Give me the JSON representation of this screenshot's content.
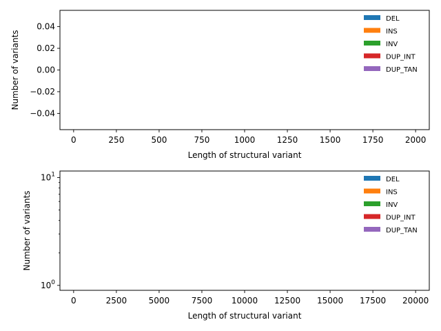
{
  "chart_data": [
    {
      "type": "bar",
      "xlabel": "Length of structural variant",
      "ylabel": "Number of variants",
      "xlim": [
        -80,
        2080
      ],
      "ylim": [
        -0.055,
        0.055
      ],
      "yscale": "linear",
      "xticks": [
        0,
        250,
        500,
        750,
        1000,
        1250,
        1500,
        1750,
        2000
      ],
      "xtick_labels": [
        "0",
        "250",
        "500",
        "750",
        "1000",
        "1250",
        "1500",
        "1750",
        "2000"
      ],
      "yticks": [
        0.04,
        0.02,
        0.0,
        -0.02,
        -0.04
      ],
      "ytick_labels": [
        "0.04",
        "0.02",
        "0.00",
        "−0.02",
        "−0.04"
      ],
      "legend_position": "upper right",
      "series": [
        {
          "name": "DEL",
          "color": "#1f77b4",
          "values": []
        },
        {
          "name": "INS",
          "color": "#ff7f0e",
          "values": []
        },
        {
          "name": "INV",
          "color": "#2ca02c",
          "values": []
        },
        {
          "name": "DUP_INT",
          "color": "#d62728",
          "values": []
        },
        {
          "name": "DUP_TAN",
          "color": "#9467bd",
          "values": []
        }
      ]
    },
    {
      "type": "bar",
      "xlabel": "Length of structural variant",
      "ylabel": "Number of variants",
      "xlim": [
        -800,
        20800
      ],
      "ylim": [
        0.9,
        11.5
      ],
      "yscale": "log",
      "xticks": [
        0,
        2500,
        5000,
        7500,
        10000,
        12500,
        15000,
        17500,
        20000
      ],
      "xtick_labels": [
        "0",
        "2500",
        "5000",
        "7500",
        "10000",
        "12500",
        "15000",
        "17500",
        "20000"
      ],
      "yticks": [
        1,
        10
      ],
      "ytick_labels": [
        {
          "base": "10",
          "exp": "0"
        },
        {
          "base": "10",
          "exp": "1"
        }
      ],
      "legend_position": "upper right",
      "series": [
        {
          "name": "DEL",
          "color": "#1f77b4",
          "values": []
        },
        {
          "name": "INS",
          "color": "#ff7f0e",
          "values": []
        },
        {
          "name": "INV",
          "color": "#2ca02c",
          "values": []
        },
        {
          "name": "DUP_INT",
          "color": "#d62728",
          "values": []
        },
        {
          "name": "DUP_TAN",
          "color": "#9467bd",
          "values": []
        }
      ]
    }
  ]
}
